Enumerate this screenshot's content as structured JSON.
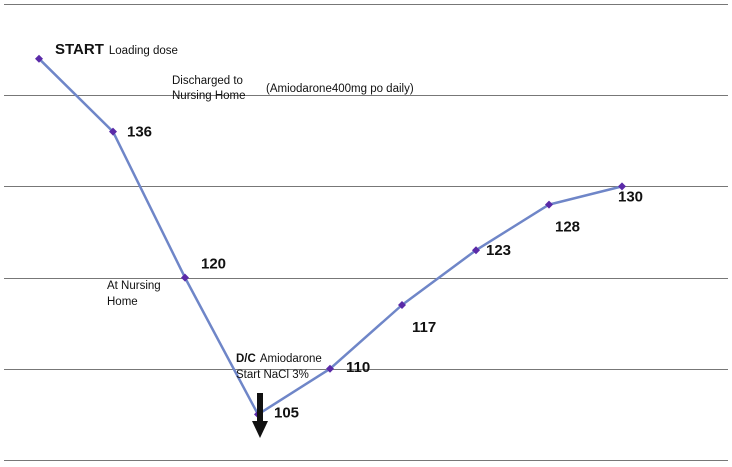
{
  "chart_data": {
    "type": "line",
    "title": "",
    "xlabel": "",
    "ylabel": "",
    "ylim": [
      100,
      150
    ],
    "grid": true,
    "legend": "none",
    "colors": {
      "line": "#6f86c8",
      "marker": "#5a2aa8",
      "arrow": "#111111",
      "grid": "#777777"
    },
    "series": [
      {
        "points": [
          {
            "x": 1,
            "y": 144,
            "label": ""
          },
          {
            "x": 2,
            "y": 136,
            "label": "136"
          },
          {
            "x": 3,
            "y": 120,
            "label": "120"
          },
          {
            "x": 4,
            "y": 105,
            "label": "105"
          },
          {
            "x": 5,
            "y": 110,
            "label": "110"
          },
          {
            "x": 6,
            "y": 117,
            "label": "117"
          },
          {
            "x": 7,
            "y": 123,
            "label": "123"
          },
          {
            "x": 8,
            "y": 128,
            "label": "128"
          },
          {
            "x": 9,
            "y": 130,
            "label": "130"
          }
        ]
      }
    ],
    "annotations": {
      "start_strong": "START",
      "start_rest": "Loading dose",
      "discharged_line1": "Discharged to",
      "discharged_line2": "Nursing Home",
      "amiodarone_dose": "(Amiodarone400mg po daily)",
      "nursing_line1": "At Nursing",
      "nursing_line2": "Home",
      "dc_strong": "D/C",
      "dc_rest": "Amiodarone",
      "start_nacl": "Start  NaCl 3%"
    },
    "arrow_marker": "down-arrow-icon"
  }
}
